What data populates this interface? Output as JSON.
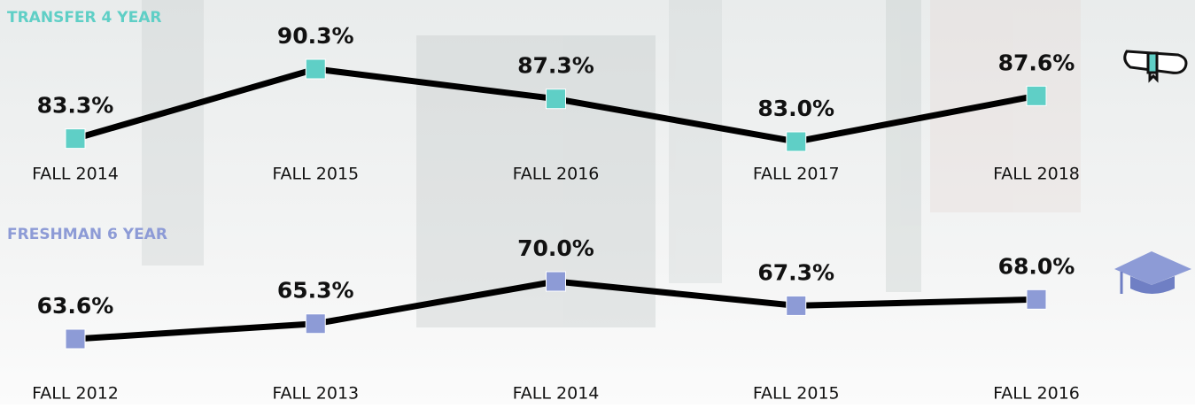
{
  "chart_data": [
    {
      "type": "line",
      "title": "TRANSFER 4 YEAR",
      "color": "#5fcfc6",
      "categories": [
        "FALL 2014",
        "FALL 2015",
        "FALL 2016",
        "FALL 2017",
        "FALL 2018"
      ],
      "values": [
        83.3,
        90.3,
        87.3,
        83.0,
        87.6
      ],
      "value_labels": [
        "83.3%",
        "90.3%",
        "87.3%",
        "83.0%",
        "87.6%"
      ]
    },
    {
      "type": "line",
      "title": "FRESHMAN 6 YEAR",
      "color": "#8d9bd6",
      "categories": [
        "FALL 2012",
        "FALL 2013",
        "FALL 2014",
        "FALL 2015",
        "FALL 2016"
      ],
      "values": [
        63.6,
        65.3,
        70.0,
        67.3,
        68.0
      ],
      "value_labels": [
        "63.6%",
        "65.3%",
        "70.0%",
        "67.3%",
        "68.0%"
      ]
    }
  ]
}
